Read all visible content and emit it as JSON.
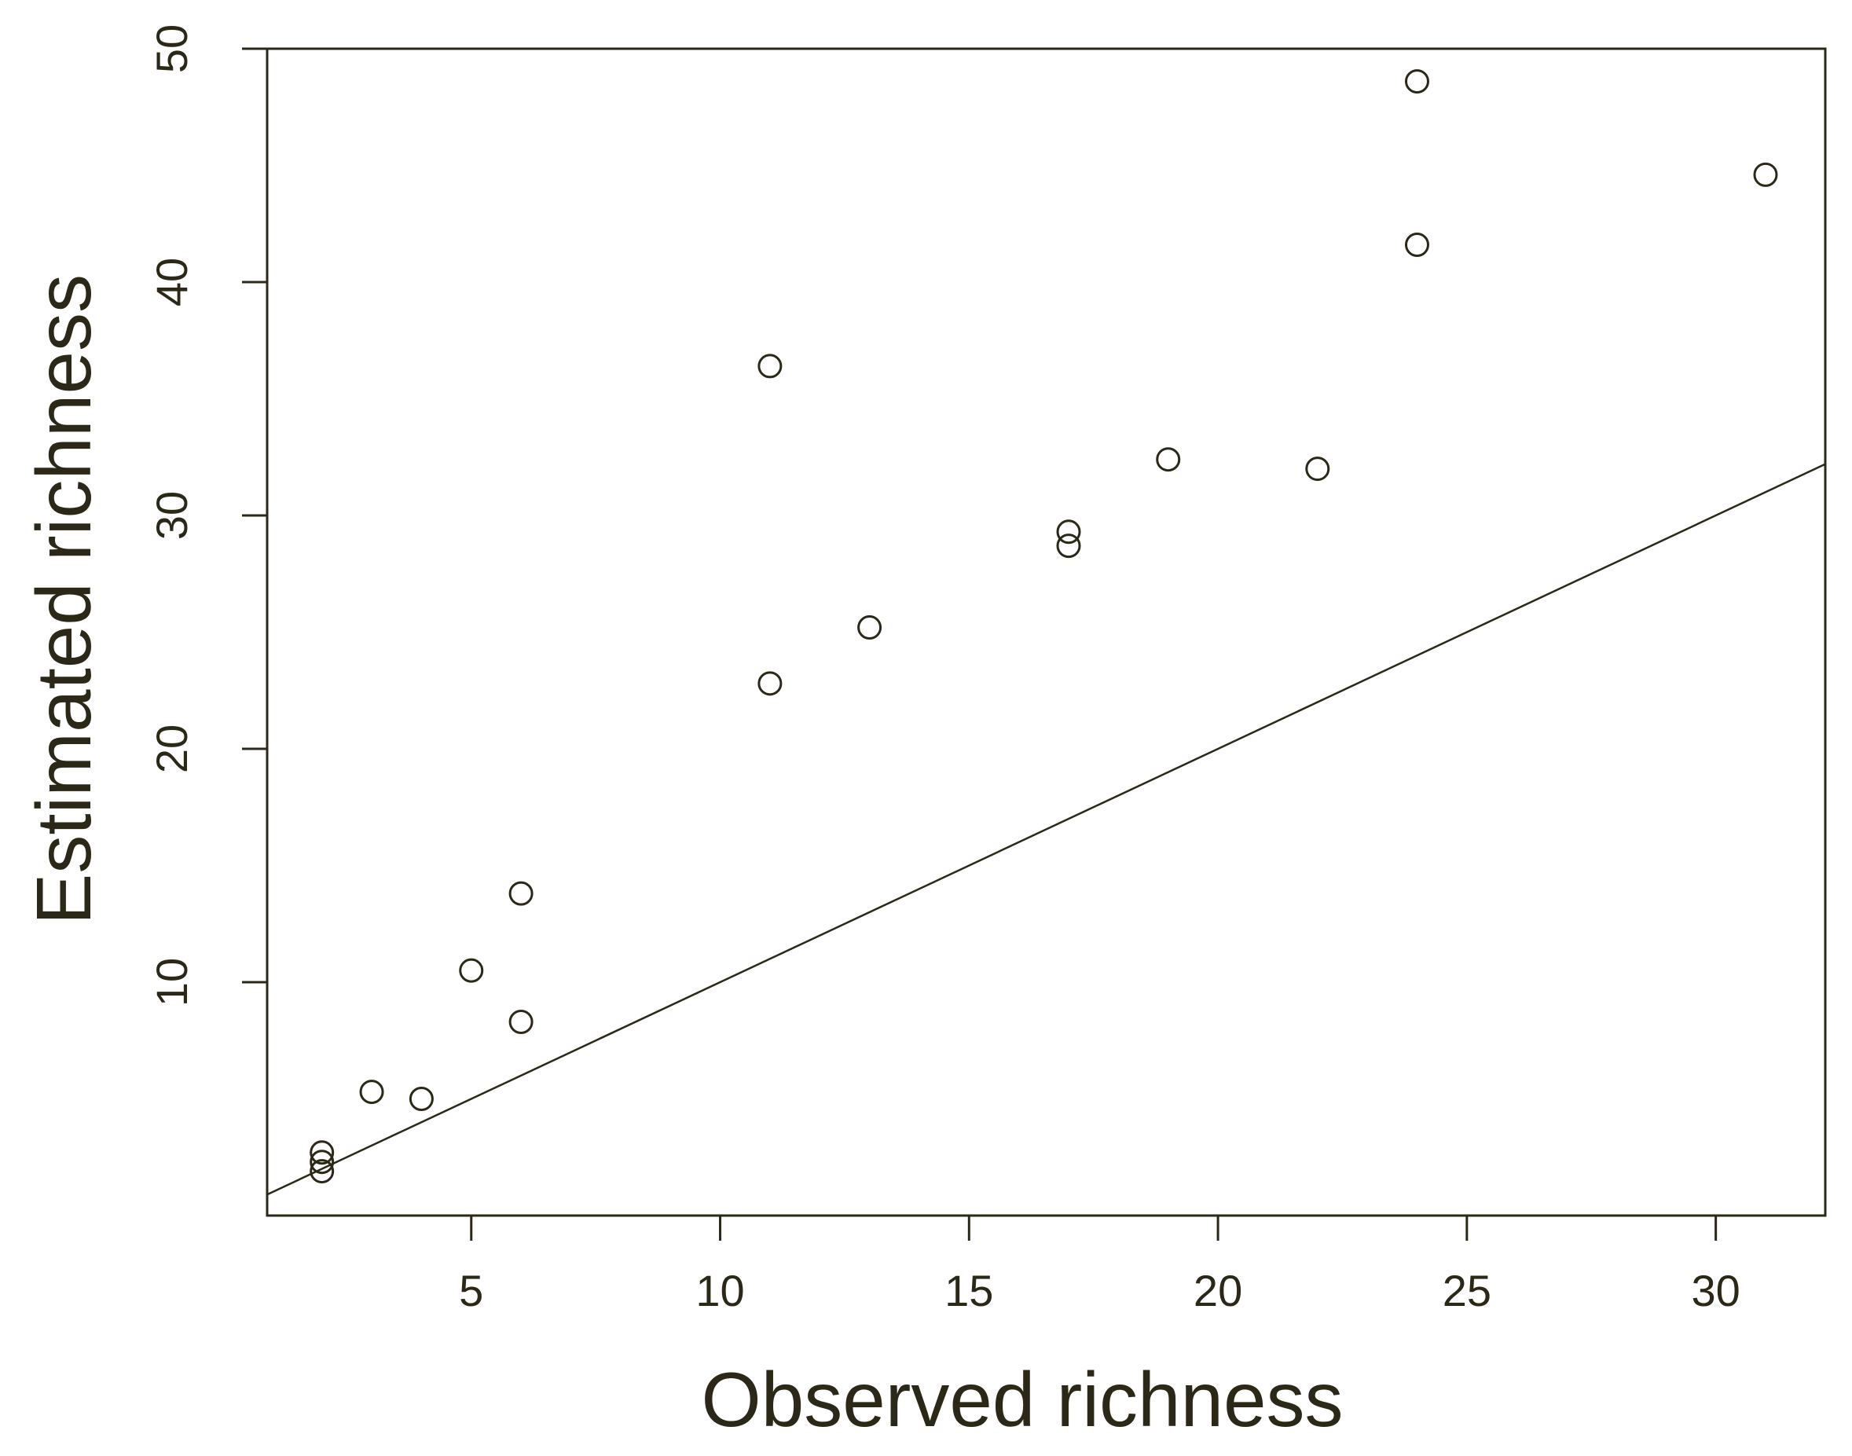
{
  "chart_data": {
    "type": "scatter",
    "title": "",
    "xlabel": "Observed richness",
    "ylabel": "Estimated richness",
    "xlim": [
      0.9,
      32.2
    ],
    "ylim": [
      0,
      50
    ],
    "x_ticks": [
      5,
      10,
      15,
      20,
      25,
      30
    ],
    "y_ticks": [
      10,
      20,
      30,
      40,
      50
    ],
    "x_tick_labels": [
      "5",
      "10",
      "15",
      "20",
      "25",
      "30"
    ],
    "y_tick_labels": [
      "10",
      "20",
      "30",
      "40",
      "50"
    ],
    "grid": false,
    "points": [
      {
        "x": 2,
        "y": 2.3
      },
      {
        "x": 2,
        "y": 2.7
      },
      {
        "x": 2,
        "y": 1.9
      },
      {
        "x": 3,
        "y": 5.3
      },
      {
        "x": 4,
        "y": 5.0
      },
      {
        "x": 5,
        "y": 10.5
      },
      {
        "x": 6,
        "y": 8.3
      },
      {
        "x": 6,
        "y": 13.8
      },
      {
        "x": 11,
        "y": 22.8
      },
      {
        "x": 11,
        "y": 36.4
      },
      {
        "x": 13,
        "y": 25.2
      },
      {
        "x": 17,
        "y": 28.7
      },
      {
        "x": 17,
        "y": 29.3
      },
      {
        "x": 19,
        "y": 32.4
      },
      {
        "x": 22,
        "y": 32.0
      },
      {
        "x": 24,
        "y": 41.6
      },
      {
        "x": 24,
        "y": 48.6
      },
      {
        "x": 31,
        "y": 44.6
      }
    ],
    "reference_line": {
      "type": "y=x",
      "slope": 1,
      "intercept": 0
    },
    "colors": {
      "ink": "#2b2818",
      "background": "#ffffff"
    }
  }
}
